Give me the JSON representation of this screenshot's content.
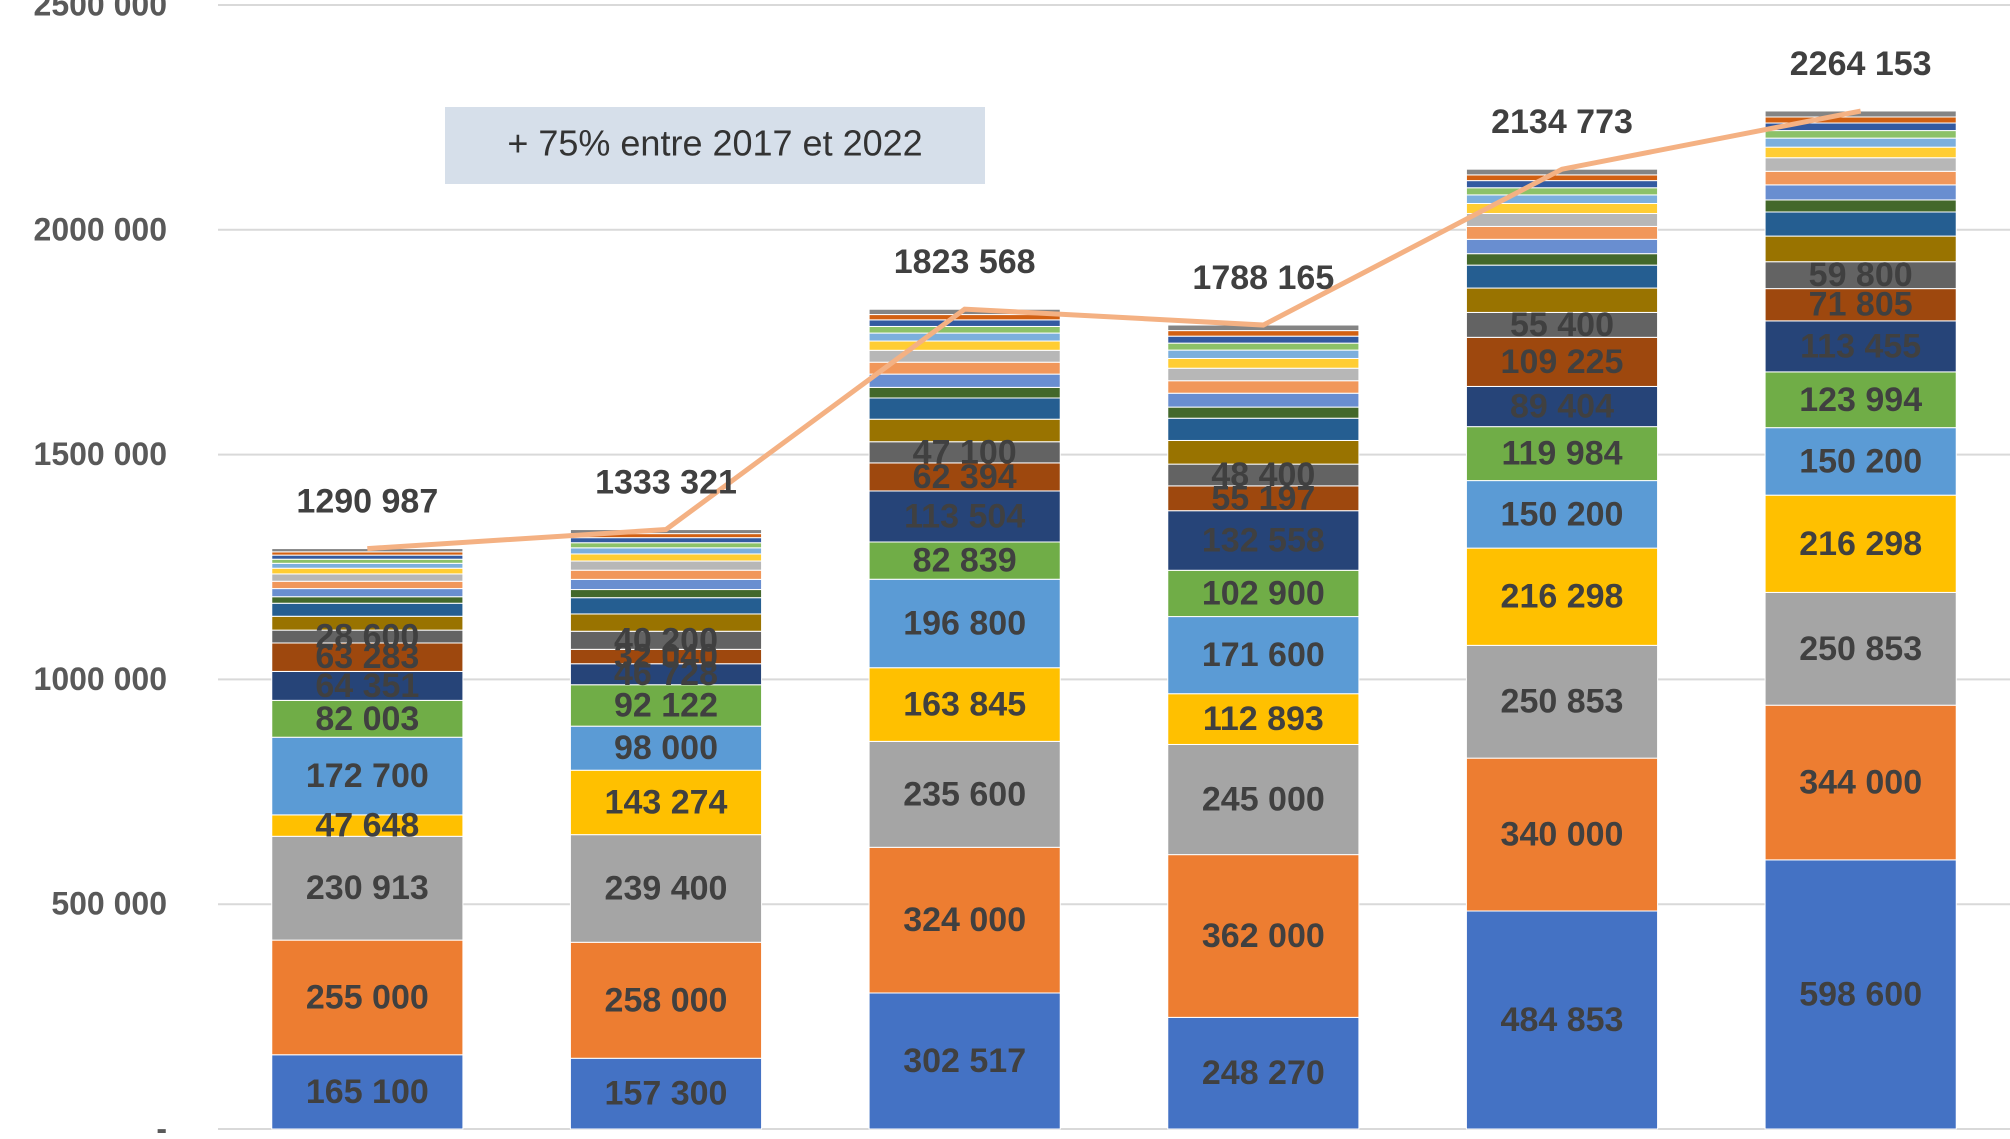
{
  "chart_data": {
    "type": "bar",
    "stacked": true,
    "annotation": "+ 75% entre 2017 et 2022",
    "categories": [
      null,
      null,
      null,
      null,
      null,
      null
    ],
    "ylim": [
      0,
      2500000
    ],
    "yticks": [
      {
        "value": 0,
        "label": "-"
      },
      {
        "value": 500000,
        "label": "500 000"
      },
      {
        "value": 1000000,
        "label": "1000 000"
      },
      {
        "value": 1500000,
        "label": "1500 000"
      },
      {
        "value": 2000000,
        "label": "2000 000"
      },
      {
        "value": 2500000,
        "label": "2500 000"
      }
    ],
    "grid": true,
    "series": [
      {
        "color": "#4472C4",
        "values": [
          165100,
          157300,
          302517,
          248270,
          484853,
          598600
        ],
        "value_labels": [
          "165 100",
          "157 300",
          "302 517",
          "248 270",
          "484 853",
          "598 600"
        ]
      },
      {
        "color": "#ED7D31",
        "values": [
          255000,
          258000,
          324000,
          362000,
          340000,
          344000
        ],
        "value_labels": [
          "255 000",
          "258 000",
          "324 000",
          "362 000",
          "340 000",
          "344 000"
        ]
      },
      {
        "color": "#A5A5A5",
        "values": [
          230913,
          239400,
          235600,
          245000,
          250853,
          250853
        ],
        "value_labels": [
          "230 913",
          "239 400",
          "235 600",
          "245 000",
          "250 853",
          "250 853"
        ]
      },
      {
        "color": "#FFC000",
        "values": [
          47648,
          143274,
          163845,
          112893,
          216298,
          216298
        ],
        "value_labels": [
          "47 648",
          "143 274",
          "163 845",
          "112 893",
          "216 298",
          "216 298"
        ]
      },
      {
        "color": "#5B9BD5",
        "values": [
          172700,
          98000,
          196800,
          171600,
          150200,
          150200
        ],
        "value_labels": [
          "172 700",
          "98 000",
          "196 800",
          "171 600",
          "150 200",
          "150 200"
        ]
      },
      {
        "color": "#70AD47",
        "values": [
          82003,
          92122,
          82839,
          102900,
          119984,
          123994
        ],
        "value_labels": [
          "82 003",
          "92 122",
          "82 839",
          "102 900",
          "119 984",
          "123 994"
        ]
      },
      {
        "color": "#264478",
        "values": [
          64351,
          46728,
          113504,
          132558,
          89404,
          113455
        ],
        "value_labels": [
          "64 351",
          "46 728",
          "113 504",
          "132 558",
          "89 404",
          "113 455"
        ]
      },
      {
        "color": "#9E480E",
        "values": [
          63283,
          32040,
          62394,
          55197,
          109225,
          71805
        ],
        "value_labels": [
          "63 283",
          "32 040",
          "62 394",
          "55 197",
          "109 225",
          "71 805"
        ]
      },
      {
        "color": "#636363",
        "values": [
          28600,
          40200,
          47100,
          48400,
          55400,
          59800
        ],
        "value_labels": [
          "28 600",
          "40 200",
          "47 100",
          "48 400",
          "55 400",
          "59 800"
        ]
      },
      {
        "color": "#997300",
        "values": [
          30800,
          38500,
          50100,
          52600,
          54200,
          57000
        ]
      },
      {
        "color": "#255E91",
        "values": [
          29000,
          36200,
          47200,
          49500,
          51000,
          53600
        ]
      },
      {
        "color": "#43682B",
        "values": [
          14500,
          18100,
          23600,
          24700,
          25500,
          26800
        ]
      },
      {
        "color": "#698ED0",
        "values": [
          18100,
          22600,
          29500,
          30900,
          31900,
          33500
        ]
      },
      {
        "color": "#F1975A",
        "values": [
          16300,
          20400,
          26500,
          27800,
          28700,
          30200
        ]
      },
      {
        "color": "#B7B7B7",
        "values": [
          16300,
          20400,
          26500,
          27800,
          28700,
          30200
        ]
      },
      {
        "color": "#FFCD33",
        "values": [
          12700,
          15800,
          20600,
          21700,
          22300,
          23500
        ]
      },
      {
        "color": "#7CAFDD",
        "values": [
          10900,
          13600,
          17700,
          18600,
          19100,
          20100
        ]
      },
      {
        "color": "#8CC168",
        "values": [
          9100,
          11300,
          14700,
          15500,
          15900,
          16800
        ]
      },
      {
        "color": "#335AA1",
        "values": [
          9100,
          11300,
          14700,
          15500,
          15900,
          16800
        ]
      },
      {
        "color": "#D26012",
        "values": [
          7300,
          9000,
          11800,
          12400,
          12700,
          13400
        ]
      },
      {
        "color": "#848484",
        "values": [
          7300,
          9000,
          11800,
          12400,
          12700,
          13400
        ]
      },
      {
        "type": "line",
        "color": "#F4B183",
        "values": [
          1290987,
          1333321,
          1823568,
          1788165,
          2134773,
          2264153
        ],
        "value_labels": [
          "1290 987",
          "1333 321",
          "1823 568",
          "1788 165",
          "2134 773",
          "2264 153"
        ]
      }
    ]
  }
}
